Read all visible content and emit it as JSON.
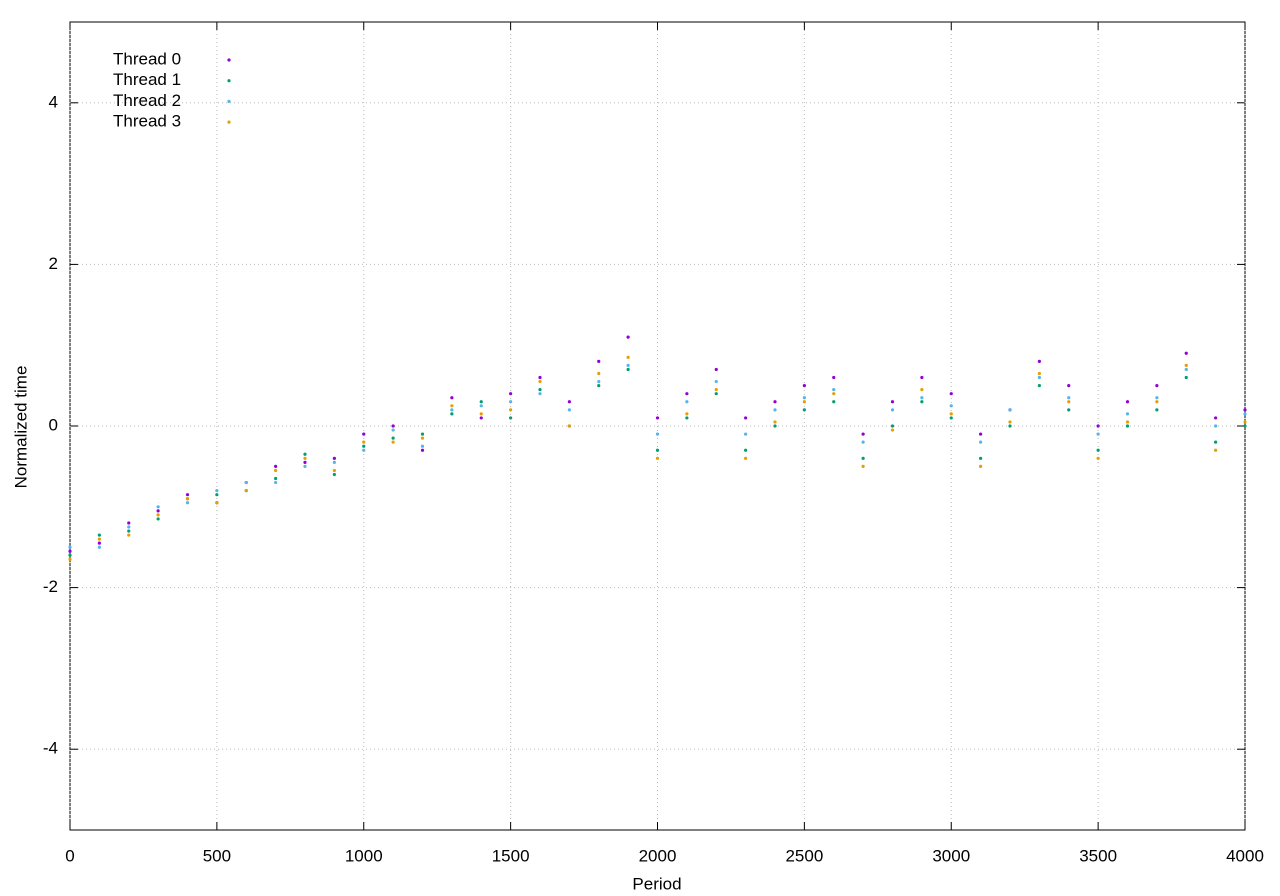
{
  "chart_data": {
    "type": "scatter",
    "x_label": "Period",
    "y_label": "Normalized time",
    "x": [
      0,
      100,
      200,
      300,
      400,
      500,
      600,
      700,
      800,
      900,
      1000,
      1100,
      1200,
      1300,
      1400,
      1500,
      1600,
      1700,
      1800,
      1900,
      2000,
      2100,
      2200,
      2300,
      2400,
      2500,
      2600,
      2700,
      2800,
      2900,
      3000,
      3100,
      3200,
      3300,
      3400,
      3500,
      3600,
      3700,
      3800,
      3900,
      4000
    ],
    "series": [
      {
        "name": "Thread 0",
        "color": "#9400d3",
        "values": [
          -1.55,
          -1.45,
          -1.2,
          -1.05,
          -0.85,
          -0.95,
          -0.7,
          -0.5,
          -0.45,
          -0.4,
          -0.1,
          0.0,
          -0.3,
          0.35,
          0.1,
          0.4,
          0.6,
          0.3,
          0.8,
          1.1,
          0.1,
          0.4,
          0.7,
          0.1,
          0.3,
          0.5,
          0.6,
          -0.1,
          0.3,
          0.6,
          0.4,
          -0.1,
          0.2,
          0.8,
          0.5,
          0.0,
          0.3,
          0.5,
          0.9,
          0.1,
          0.2
        ]
      },
      {
        "name": "Thread 1",
        "color": "#009e73",
        "values": [
          -1.6,
          -1.35,
          -1.3,
          -1.15,
          -0.9,
          -0.85,
          -0.8,
          -0.65,
          -0.35,
          -0.6,
          -0.25,
          -0.15,
          -0.1,
          0.15,
          0.3,
          0.1,
          0.45,
          0.0,
          0.5,
          0.7,
          -0.3,
          0.1,
          0.4,
          -0.3,
          0.0,
          0.2,
          0.3,
          -0.4,
          0.0,
          0.3,
          0.1,
          -0.4,
          0.0,
          0.5,
          0.2,
          -0.3,
          0.0,
          0.2,
          0.6,
          -0.2,
          0.0
        ]
      },
      {
        "name": "Thread 2",
        "color": "#56b4e9",
        "values": [
          -1.5,
          -1.5,
          -1.25,
          -1.0,
          -0.95,
          -0.8,
          -0.7,
          -0.7,
          -0.5,
          -0.45,
          -0.3,
          -0.05,
          -0.25,
          0.2,
          0.25,
          0.3,
          0.4,
          0.2,
          0.55,
          0.75,
          -0.1,
          0.3,
          0.55,
          -0.1,
          0.2,
          0.35,
          0.45,
          -0.2,
          0.2,
          0.35,
          0.25,
          -0.2,
          0.2,
          0.6,
          0.35,
          -0.1,
          0.15,
          0.35,
          0.7,
          0.0,
          0.15
        ]
      },
      {
        "name": "Thread 3",
        "color": "#e69f00",
        "values": [
          -1.65,
          -1.4,
          -1.35,
          -1.1,
          -0.9,
          -0.95,
          -0.8,
          -0.55,
          -0.4,
          -0.55,
          -0.2,
          -0.2,
          -0.15,
          0.25,
          0.15,
          0.2,
          0.55,
          0.0,
          0.65,
          0.85,
          -0.4,
          0.15,
          0.45,
          -0.4,
          0.05,
          0.3,
          0.4,
          -0.5,
          -0.05,
          0.45,
          0.15,
          -0.5,
          0.05,
          0.65,
          0.3,
          -0.4,
          0.05,
          0.3,
          0.75,
          -0.3,
          0.05
        ]
      }
    ],
    "xlim": [
      0,
      4000
    ],
    "xticks": [
      0,
      500,
      1000,
      1500,
      2000,
      2500,
      3000,
      3500,
      4000
    ],
    "ylim": [
      -5,
      5
    ],
    "yticks": [
      -4,
      -2,
      0,
      2,
      4
    ],
    "grid": true,
    "legend": "top-left"
  }
}
